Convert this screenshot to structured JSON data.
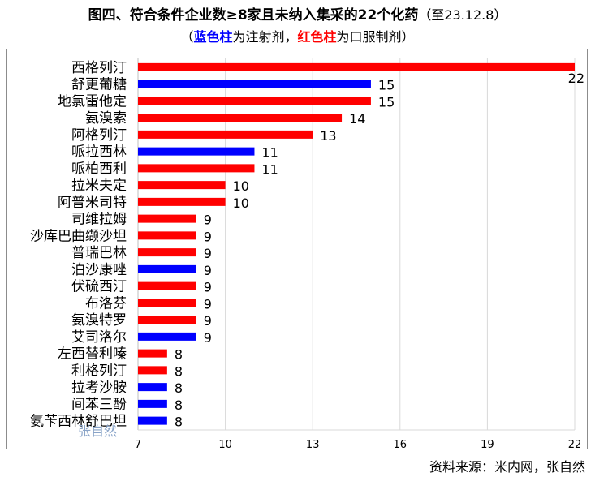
{
  "title": {
    "main": "图四、符合条件企业数≥8家且未纳入集采的22个化药",
    "date": "（至23.12.8）"
  },
  "subtitle": {
    "open": "（",
    "blue_label": "蓝色柱",
    "blue_text": "为注射剂，",
    "red_label": "红色柱",
    "red_text": "为口服制剂",
    "close": "）"
  },
  "watermark": "张自然",
  "source": "资料来源：米内网，张自然",
  "colors": {
    "blue": "#0000ff",
    "red": "#ff0000"
  },
  "chart_data": {
    "type": "bar",
    "orientation": "horizontal",
    "categories": [
      "西格列汀",
      "舒更葡糖",
      "地氯雷他定",
      "氨溴索",
      "阿格列汀",
      "哌拉西林",
      "哌柏西利",
      "拉米夫定",
      "阿普米司特",
      "司维拉姆",
      "沙库巴曲缬沙坦",
      "普瑞巴林",
      "泊沙康唑",
      "伏硫西汀",
      "布洛芬",
      "氨溴特罗",
      "艾司洛尔",
      "左西替利嗪",
      "利格列汀",
      "拉考沙胺",
      "间苯三酚",
      "氨苄西林舒巴坦"
    ],
    "values": [
      22,
      15,
      15,
      14,
      13,
      11,
      11,
      10,
      10,
      9,
      9,
      9,
      9,
      9,
      9,
      9,
      9,
      8,
      8,
      8,
      8,
      8
    ],
    "value_labels": [
      "22",
      "15",
      "15",
      "14",
      "13",
      "11",
      "11",
      "10",
      "10",
      "9",
      "9",
      "9",
      "9",
      "9",
      "9",
      "9",
      "9",
      "8",
      "8",
      "8",
      "8",
      "8"
    ],
    "bar_colors": [
      "red",
      "blue",
      "red",
      "red",
      "red",
      "blue",
      "red",
      "red",
      "red",
      "red",
      "red",
      "red",
      "blue",
      "red",
      "red",
      "red",
      "blue",
      "red",
      "red",
      "blue",
      "blue",
      "blue"
    ],
    "xlim": [
      7,
      22
    ],
    "xticks": [
      7,
      10,
      13,
      16,
      19,
      22
    ],
    "xtick_labels": [
      "7",
      "10",
      "13",
      "16",
      "19",
      "22"
    ],
    "grid": true
  }
}
